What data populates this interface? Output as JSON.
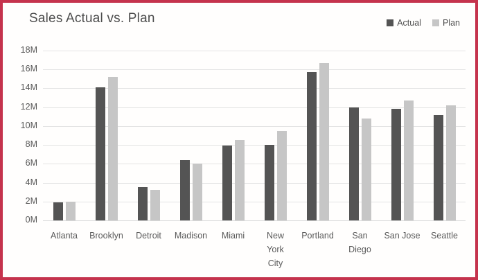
{
  "colors": {
    "border": "#c5334d",
    "background": "#fffefd",
    "title_text": "#4d4d4d",
    "axis_text": "#595959",
    "gridline": "#e3e3e3",
    "actual_bar": "#545454",
    "plan_bar": "#c6c6c6"
  },
  "chart_data": {
    "type": "bar",
    "title": "Sales Actual vs. Plan",
    "categories": [
      "Atlanta",
      "Brooklyn",
      "Detroit",
      "Madison",
      "Miami",
      "New York City",
      "Portland",
      "San Diego",
      "San Jose",
      "Seattle"
    ],
    "category_display": [
      "Atlanta",
      "Brooklyn",
      "Detroit",
      "Madison",
      "Miami",
      "New\nYork\nCity",
      "Portland",
      "San\nDiego",
      "San Jose",
      "Seattle"
    ],
    "series": [
      {
        "name": "Actual",
        "color": "#545454",
        "values": [
          1.9,
          14.1,
          3.5,
          6.4,
          7.9,
          8.0,
          15.7,
          12.0,
          11.8,
          11.2
        ]
      },
      {
        "name": "Plan",
        "color": "#c6c6c6",
        "values": [
          2.0,
          15.2,
          3.2,
          6.0,
          8.5,
          9.5,
          16.7,
          10.8,
          12.7,
          12.2
        ]
      }
    ],
    "unit": "M",
    "ylabel": "",
    "xlabel": "",
    "ylim": [
      0,
      18
    ],
    "y_tick_step": 2,
    "y_ticks": [
      "18M",
      "16M",
      "14M",
      "12M",
      "10M",
      "8M",
      "6M",
      "4M",
      "2M",
      "0M"
    ],
    "grid": true,
    "legend_position": "top-right"
  }
}
